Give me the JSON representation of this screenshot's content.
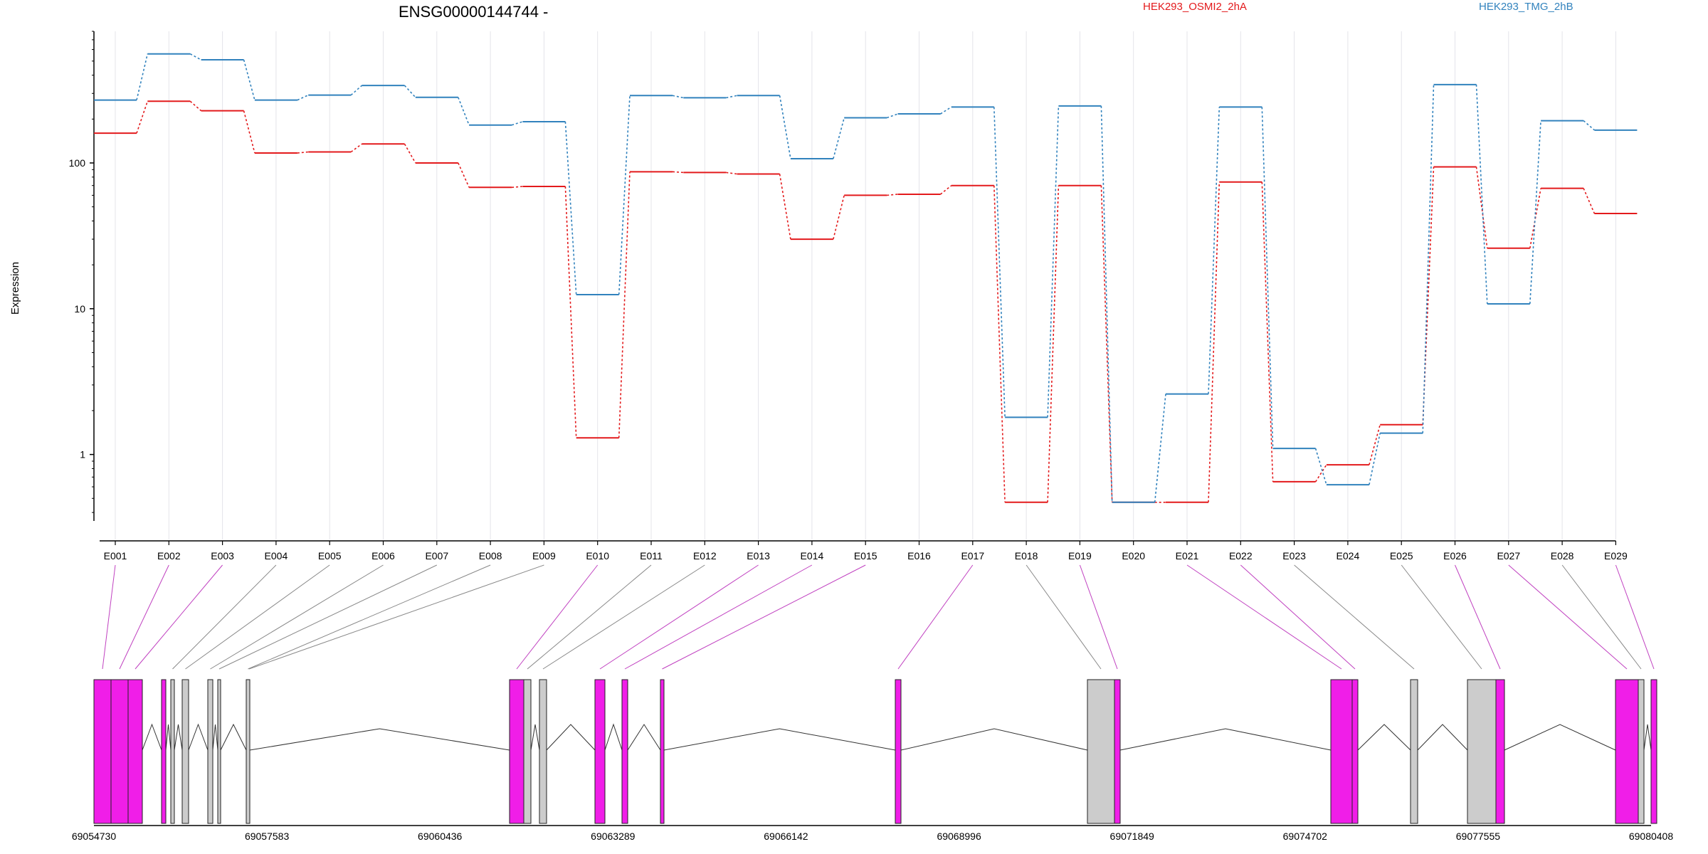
{
  "colors": {
    "series_a": "#e31a1c",
    "series_b": "#3182bd",
    "significant_exon": "#f01ee8",
    "other_exon": "#cccccc",
    "connector_significant": "#c040c0",
    "connector_other": "#888888",
    "grid": "#e4e4ea"
  },
  "chart_data": {
    "type": "line",
    "title": "ENSG00000144744 -",
    "ylabel": "Expression",
    "xlabel": "",
    "y_scale": "log",
    "ylim": [
      0.35,
      800
    ],
    "y_ticks": [
      {
        "value": 1,
        "label": "1"
      },
      {
        "value": 10,
        "label": "10"
      },
      {
        "value": 100,
        "label": "100"
      }
    ],
    "categories": [
      "E001",
      "E002",
      "E003",
      "E004",
      "E005",
      "E006",
      "E007",
      "E008",
      "E009",
      "E010",
      "E011",
      "E012",
      "E013",
      "E014",
      "E015",
      "E016",
      "E017",
      "E018",
      "E019",
      "E020",
      "E021",
      "E022",
      "E023",
      "E024",
      "E025",
      "E026",
      "E027",
      "E028",
      "E029"
    ],
    "series": [
      {
        "name": "HEK293_OSMI2_2hA",
        "color": "#e31a1c",
        "values": [
          160,
          265,
          228,
          117,
          119,
          135,
          100,
          68,
          69,
          1.3,
          87,
          86,
          84,
          30,
          60,
          61,
          70,
          0.47,
          70,
          0.47,
          0.47,
          74,
          0.65,
          0.85,
          1.6,
          94,
          26,
          67,
          45
        ]
      },
      {
        "name": "HEK293_TMG_2hB",
        "color": "#3182bd",
        "values": [
          270,
          560,
          510,
          270,
          292,
          340,
          282,
          182,
          192,
          12.5,
          290,
          280,
          290,
          107,
          204,
          217,
          242,
          1.8,
          246,
          0.47,
          2.6,
          242,
          1.1,
          0.62,
          1.4,
          345,
          10.8,
          195,
          168
        ]
      }
    ],
    "legend": {
      "position": "top"
    },
    "grid": true,
    "significant_exons": [
      "E001",
      "E002",
      "E003",
      "E010",
      "E013",
      "E014",
      "E015",
      "E016",
      "E017",
      "E019",
      "E021",
      "E022",
      "E026",
      "E027",
      "E029"
    ],
    "genome": {
      "coord_ticks": [
        69054730,
        69057583,
        69060436,
        69063289,
        69066142,
        69068996,
        69071849,
        69074702,
        69077555,
        69080408
      ],
      "range": [
        69054730,
        69080408
      ]
    }
  }
}
